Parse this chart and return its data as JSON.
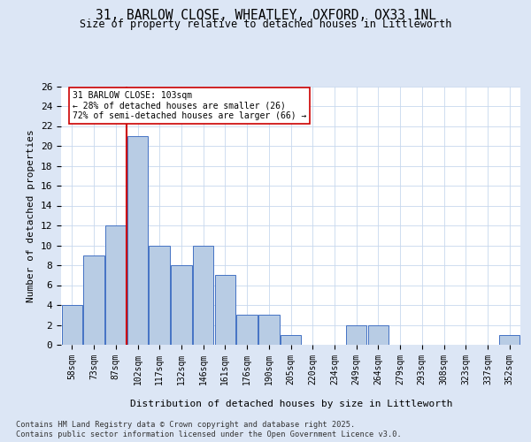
{
  "title_line1": "31, BARLOW CLOSE, WHEATLEY, OXFORD, OX33 1NL",
  "title_line2": "Size of property relative to detached houses in Littleworth",
  "xlabel": "Distribution of detached houses by size in Littleworth",
  "ylabel": "Number of detached properties",
  "categories": [
    "58sqm",
    "73sqm",
    "87sqm",
    "102sqm",
    "117sqm",
    "132sqm",
    "146sqm",
    "161sqm",
    "176sqm",
    "190sqm",
    "205sqm",
    "220sqm",
    "234sqm",
    "249sqm",
    "264sqm",
    "279sqm",
    "293sqm",
    "308sqm",
    "323sqm",
    "337sqm",
    "352sqm"
  ],
  "values": [
    4,
    9,
    12,
    21,
    10,
    8,
    10,
    7,
    3,
    3,
    1,
    0,
    0,
    2,
    2,
    0,
    0,
    0,
    0,
    0,
    1
  ],
  "bar_color": "#b8cce4",
  "bar_edge_color": "#4472c4",
  "marker_index": 3,
  "marker_color": "#cc0000",
  "annotation_text": "31 BARLOW CLOSE: 103sqm\n← 28% of detached houses are smaller (26)\n72% of semi-detached houses are larger (66) →",
  "annotation_box_color": "#ffffff",
  "annotation_box_edge": "#cc0000",
  "ylim": [
    0,
    26
  ],
  "yticks": [
    0,
    2,
    4,
    6,
    8,
    10,
    12,
    14,
    16,
    18,
    20,
    22,
    24,
    26
  ],
  "footer_line1": "Contains HM Land Registry data © Crown copyright and database right 2025.",
  "footer_line2": "Contains public sector information licensed under the Open Government Licence v3.0.",
  "background_color": "#dce6f5",
  "plot_bg_color": "#ffffff"
}
